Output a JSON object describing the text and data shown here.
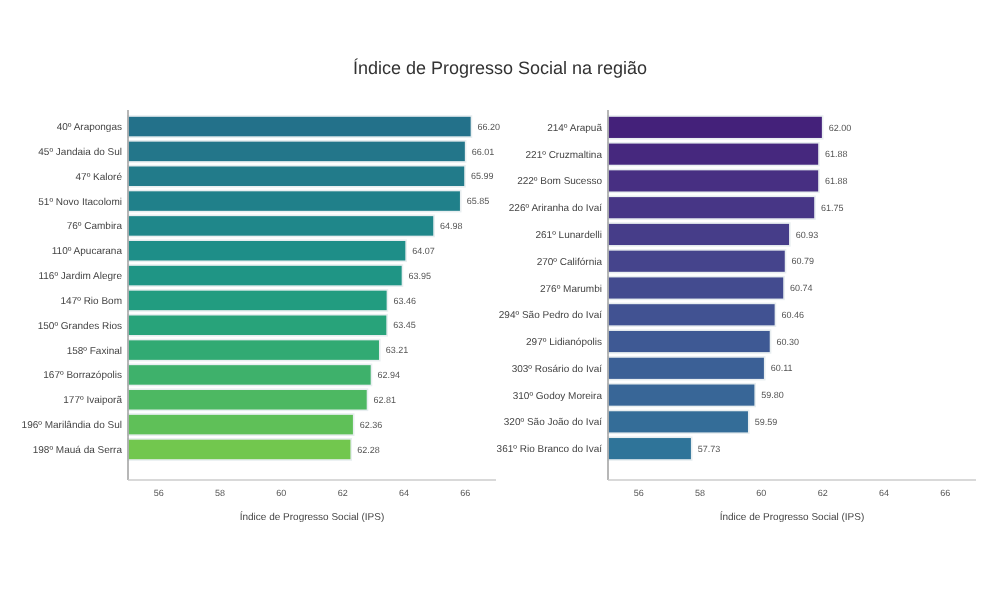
{
  "chart_data": [
    {
      "type": "bar",
      "orientation": "horizontal",
      "title": "Índice de Progresso Social na região",
      "xlabel": "Índice de Progresso Social (IPS)",
      "categories": [
        "40º Arapongas",
        "45º Jandaia do Sul",
        "47º Kaloré",
        "51º Novo Itacolomi",
        "76º Cambira",
        "110º Apucarana",
        "116º Jardim Alegre",
        "147º Rio Bom",
        "150º Grandes Rios",
        "158º Faxinal",
        "167º Borrazópolis",
        "177º Ivaiporã",
        "196º Marilândia do Sul",
        "198º Mauá da Serra"
      ],
      "values": [
        66.2,
        66.01,
        65.99,
        65.85,
        64.98,
        64.07,
        63.95,
        63.46,
        63.45,
        63.21,
        62.94,
        62.81,
        62.36,
        62.28
      ],
      "colors": [
        "#23718a",
        "#23768a",
        "#227b8a",
        "#20808a",
        "#1f878a",
        "#1e8e88",
        "#1f9585",
        "#229c80",
        "#28a37a",
        "#31aa73",
        "#3eb16b",
        "#4db862",
        "#5fc058",
        "#72c74e"
      ],
      "value_labels": [
        "66.20",
        "66.01",
        "65.99",
        "65.85",
        "64.98",
        "64.07",
        "63.95",
        "63.46",
        "63.45",
        "63.21",
        "62.94",
        "62.81",
        "62.36",
        "62.28"
      ],
      "xlim": [
        55,
        67
      ],
      "xticks": [
        56,
        58,
        60,
        62,
        64,
        66
      ],
      "grid": false
    },
    {
      "type": "bar",
      "orientation": "horizontal",
      "xlabel": "Índice de Progresso Social (IPS)",
      "categories": [
        "214º Arapuã",
        "221º Cruzmaltina",
        "222º Bom Sucesso",
        "226º Ariranha do Ivaí",
        "261º Lunardelli",
        "270º Califórnia",
        "276º Marumbi",
        "294º São Pedro do Ivaí",
        "297º Lidianópolis",
        "303º Rosário do Ivaí",
        "310º Godoy Moreira",
        "320º São João do Ivaí",
        "361º Rio Branco do Ivaí"
      ],
      "values": [
        62.0,
        61.88,
        61.88,
        61.75,
        60.93,
        60.79,
        60.74,
        60.46,
        60.3,
        60.11,
        59.8,
        59.59,
        57.73
      ],
      "colors": [
        "#44217a",
        "#46287e",
        "#472f82",
        "#473686",
        "#463d89",
        "#45448c",
        "#434b8f",
        "#415292",
        "#3e5994",
        "#3b6096",
        "#386697",
        "#346d98",
        "#2f7499"
      ],
      "value_labels": [
        "62.00",
        "61.88",
        "61.88",
        "61.75",
        "60.93",
        "60.79",
        "60.74",
        "60.46",
        "60.30",
        "60.11",
        "59.80",
        "59.59",
        "57.73"
      ],
      "xlim": [
        55,
        67
      ],
      "xticks": [
        56,
        58,
        60,
        62,
        64,
        66
      ],
      "grid": false
    }
  ]
}
